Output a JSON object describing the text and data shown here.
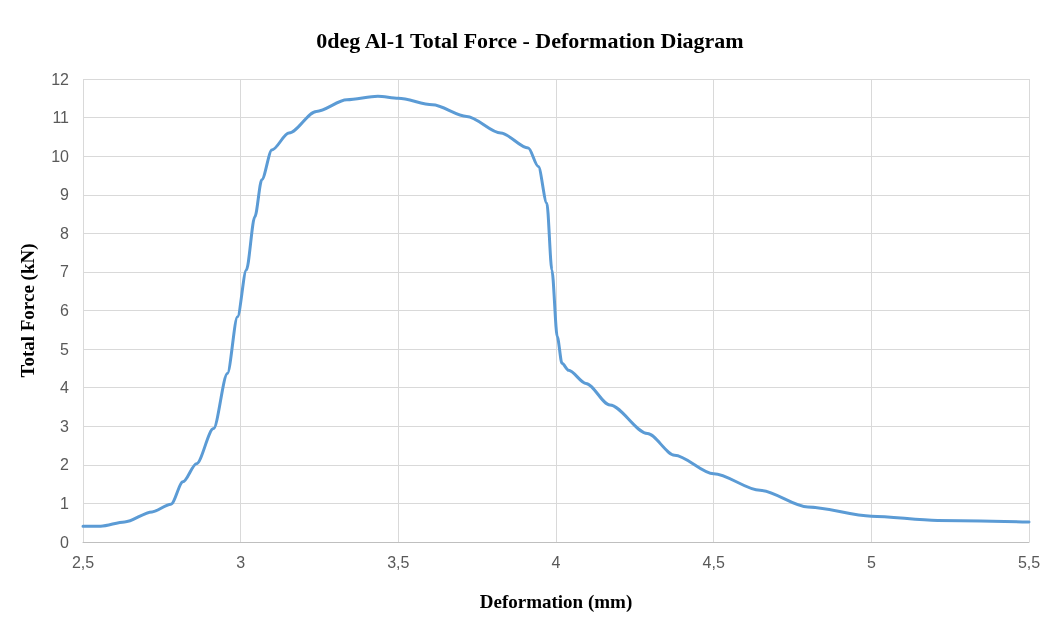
{
  "chart_data": {
    "type": "line",
    "title": "0deg Al-1 Total Force - Deformation Diagram",
    "xlabel": "Deformation (mm)",
    "ylabel": "Total Force (kN)",
    "x": [
      2.5,
      2.556,
      2.632,
      2.719,
      2.779,
      2.817,
      2.86,
      2.914,
      2.958,
      2.99,
      3.018,
      3.045,
      3.067,
      3.099,
      3.153,
      3.24,
      3.337,
      3.435,
      3.5,
      3.608,
      3.717,
      3.825,
      3.912,
      3.944,
      3.971,
      3.987,
      4.004,
      4.019,
      4.04,
      4.095,
      4.171,
      4.29,
      4.376,
      4.5,
      4.647,
      4.799,
      5.0,
      5.21,
      5.5
    ],
    "series": [
      {
        "color": "#5b9bd5",
        "values": [
          0.41,
          0.41,
          0.52,
          0.78,
          0.98,
          1.56,
          2.03,
          2.94,
          4.37,
          5.84,
          7.05,
          8.43,
          9.39,
          10.16,
          10.6,
          11.16,
          11.46,
          11.55,
          11.5,
          11.33,
          11.03,
          10.6,
          10.21,
          9.73,
          8.78,
          7.05,
          5.32,
          4.63,
          4.45,
          4.11,
          3.55,
          2.81,
          2.25,
          1.77,
          1.34,
          0.91,
          0.67,
          0.56,
          0.52
        ]
      }
    ],
    "xlim": [
      2.5,
      5.5
    ],
    "xticks": [
      {
        "value": 2.5,
        "label": "2,5"
      },
      3,
      {
        "value": 3.5,
        "label": "3,5"
      },
      4,
      {
        "value": 4.5,
        "label": "4,5"
      },
      5,
      {
        "value": 5.5,
        "label": "5,5"
      }
    ],
    "ylim": [
      0,
      12
    ],
    "yticks": [
      0,
      1,
      2,
      3,
      4,
      5,
      6,
      7,
      8,
      9,
      10,
      11,
      12
    ],
    "grid": true,
    "marker": "none",
    "line_style": "solid"
  }
}
